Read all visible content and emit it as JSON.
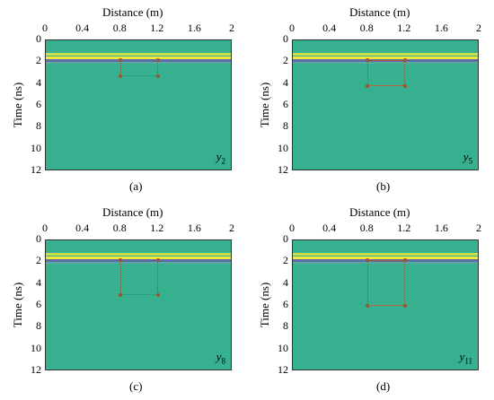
{
  "panels": [
    {
      "label": "(a)",
      "var": "y",
      "sub": "2",
      "box_ns": [
        1.8,
        3.3
      ],
      "box_m": [
        0.8,
        1.2
      ]
    },
    {
      "label": "(b)",
      "var": "y",
      "sub": "5",
      "box_ns": [
        1.8,
        4.2
      ],
      "box_m": [
        0.8,
        1.2
      ]
    },
    {
      "label": "(c)",
      "var": "y",
      "sub": "8",
      "box_ns": [
        1.8,
        5.0
      ],
      "box_m": [
        0.8,
        1.2
      ]
    },
    {
      "label": "(d)",
      "var": "y",
      "sub": "11",
      "box_ns": [
        1.8,
        6.0
      ],
      "box_m": [
        0.8,
        1.2
      ]
    }
  ],
  "xaxis": {
    "title": "Distance (m)",
    "ticks": [
      "0",
      "0.4",
      "0.8",
      "1.2",
      "1.6",
      "2"
    ],
    "range": [
      0,
      2
    ]
  },
  "yaxis": {
    "title": "Time (ns)",
    "ticks": [
      "0",
      "2",
      "4",
      "6",
      "8",
      "10",
      "12"
    ],
    "range": [
      0,
      12
    ]
  },
  "colors": {
    "background": "#36b08f",
    "box": "#a0522d"
  }
}
